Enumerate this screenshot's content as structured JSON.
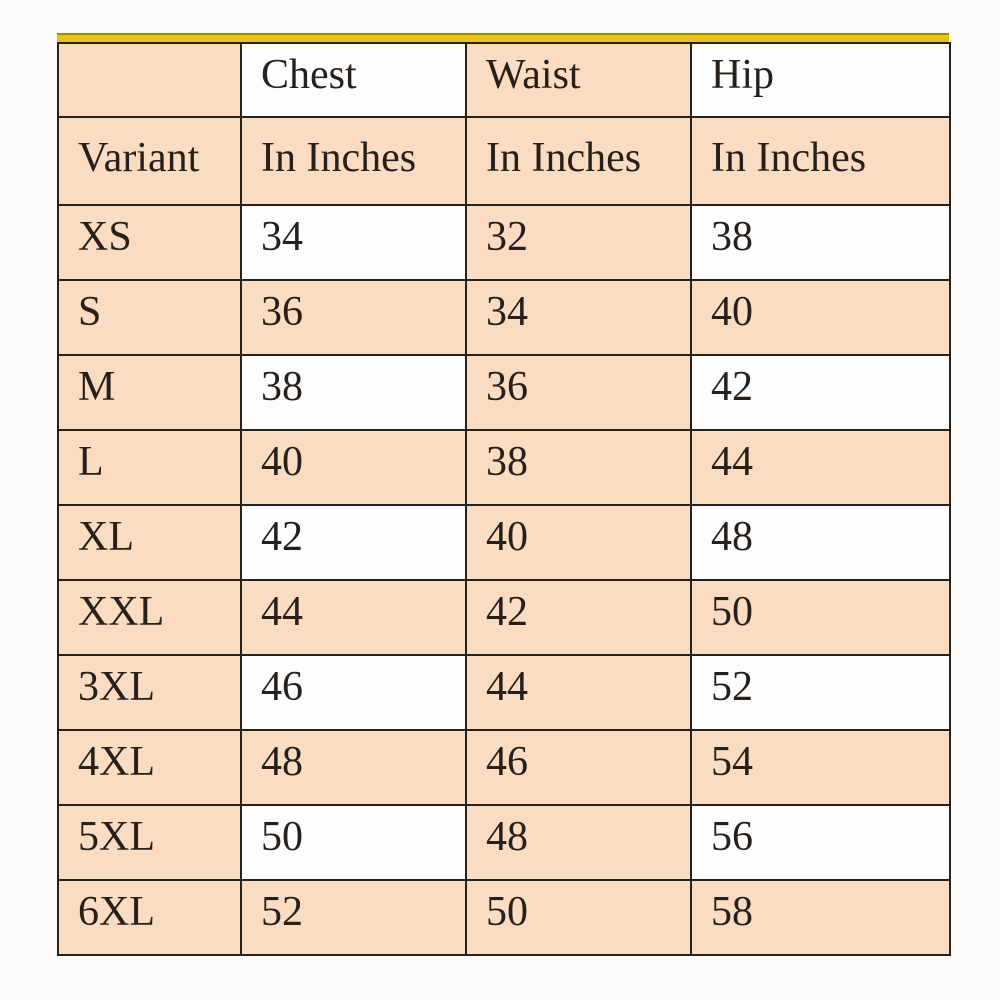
{
  "table": {
    "header": {
      "cells": [
        "",
        "Chest",
        "Waist",
        "Hip"
      ]
    },
    "subheader": {
      "cells": [
        "Variant",
        "In Inches",
        "In Inches",
        "In Inches"
      ]
    },
    "rows": [
      {
        "variant": "XS",
        "chest": "34",
        "waist": "32",
        "hip": "38"
      },
      {
        "variant": "S",
        "chest": "36",
        "waist": "34",
        "hip": "40"
      },
      {
        "variant": "M",
        "chest": "38",
        "waist": "36",
        "hip": "42"
      },
      {
        "variant": "L",
        "chest": "40",
        "waist": "38",
        "hip": "44"
      },
      {
        "variant": "XL",
        "chest": "42",
        "waist": "40",
        "hip": "48"
      },
      {
        "variant": "XXL",
        "chest": "44",
        "waist": "42",
        "hip": "50"
      },
      {
        "variant": "3XL",
        "chest": "46",
        "waist": "44",
        "hip": "52"
      },
      {
        "variant": "4XL",
        "chest": "48",
        "waist": "46",
        "hip": "54"
      },
      {
        "variant": "5XL",
        "chest": "50",
        "waist": "48",
        "hip": "56"
      },
      {
        "variant": "6XL",
        "chest": "52",
        "waist": "50",
        "hip": "58"
      }
    ]
  },
  "chart_data": {
    "type": "table",
    "columns": [
      "Variant",
      "Chest In Inches",
      "Waist In Inches",
      "Hip In Inches"
    ],
    "rows": [
      [
        "XS",
        34,
        32,
        38
      ],
      [
        "S",
        36,
        34,
        40
      ],
      [
        "M",
        38,
        36,
        42
      ],
      [
        "L",
        40,
        38,
        44
      ],
      [
        "XL",
        42,
        40,
        48
      ],
      [
        "XXL",
        44,
        42,
        50
      ],
      [
        "3XL",
        46,
        44,
        52
      ],
      [
        "4XL",
        48,
        46,
        54
      ],
      [
        "5XL",
        50,
        48,
        56
      ],
      [
        "6XL",
        52,
        50,
        58
      ]
    ]
  },
  "colors": {
    "peach": "#fadcc2",
    "white-cell": "#fdfdfd",
    "accent": "#e5c41c",
    "accent-dark": "#9a8a10",
    "border": "#26211d",
    "text": "#261f1a",
    "page-bg": "#fdfcfa"
  }
}
